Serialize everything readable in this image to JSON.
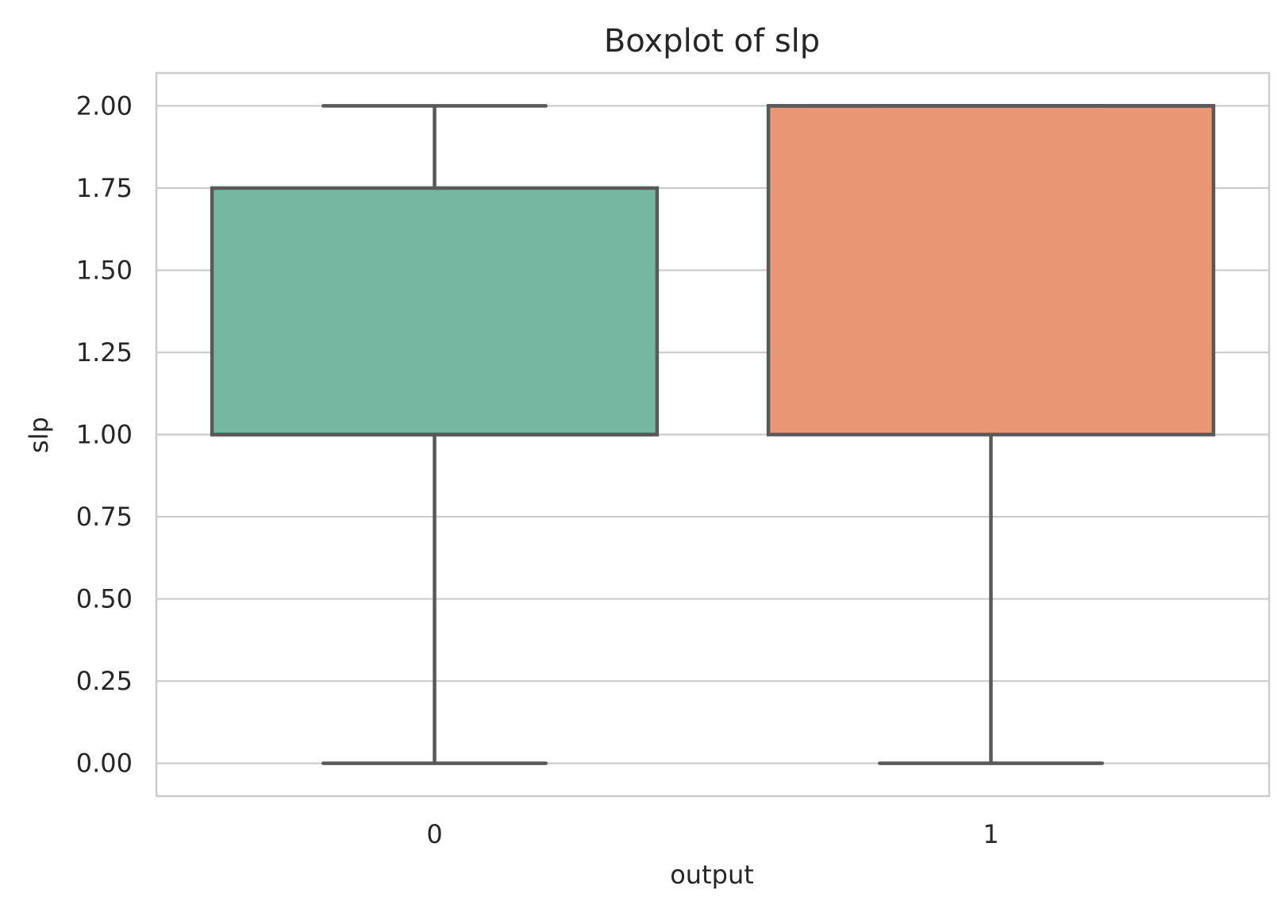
{
  "chart_data": {
    "type": "box",
    "title": "Boxplot of slp",
    "xlabel": "output",
    "ylabel": "slp",
    "categories": [
      "0",
      "1"
    ],
    "colors": [
      "#76b7a2",
      "#e99675"
    ],
    "edge_color": "#595959",
    "grid_color": "#cccccc",
    "ylim": [
      -0.1,
      2.1
    ],
    "yticks": [
      0.0,
      0.25,
      0.5,
      0.75,
      1.0,
      1.25,
      1.5,
      1.75,
      2.0
    ],
    "ytick_labels": [
      "0.00",
      "0.25",
      "0.50",
      "0.75",
      "1.00",
      "1.25",
      "1.50",
      "1.75",
      "2.00"
    ],
    "boxes": [
      {
        "category": "0",
        "whisker_low": 0.0,
        "q1": 1.0,
        "median": 1.0,
        "q3": 1.75,
        "whisker_high": 2.0
      },
      {
        "category": "1",
        "whisker_low": 0.0,
        "q1": 1.0,
        "median": 2.0,
        "q3": 2.0,
        "whisker_high": 2.0
      }
    ],
    "grid": true
  }
}
